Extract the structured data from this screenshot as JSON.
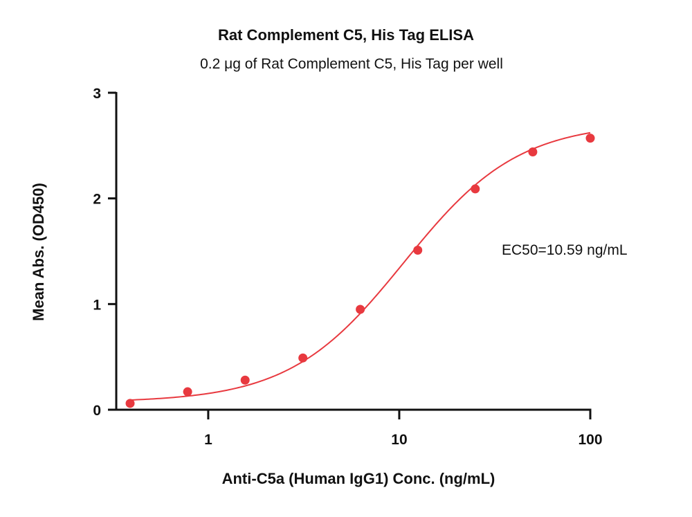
{
  "chart_data": {
    "type": "scatter",
    "title": "Rat Complement C5, His Tag ELISA",
    "subtitle": "0.2 μg of Rat Complement C5, His Tag per well",
    "xlabel": "Anti-C5a (Human IgG1) Conc. (ng/mL)",
    "ylabel": "Mean Abs. (OD450)",
    "x_scale": "log",
    "xlim": [
      0.33,
      100
    ],
    "ylim": [
      0,
      3
    ],
    "x_ticks": [
      1,
      10,
      100
    ],
    "x_tick_labels": [
      "1",
      "10",
      "100"
    ],
    "y_ticks": [
      0,
      1,
      2,
      3
    ],
    "y_tick_labels": [
      "0",
      "1",
      "2",
      "3"
    ],
    "grid": false,
    "annotation": "EC50=10.59 ng/mL",
    "colors": {
      "series": "#e8393f",
      "axis": "#111111"
    },
    "series": [
      {
        "x": [
          0.39,
          0.78,
          1.56,
          3.13,
          6.25,
          12.5,
          25,
          50,
          100
        ],
        "y": [
          0.06,
          0.17,
          0.28,
          0.49,
          0.95,
          1.51,
          2.09,
          2.44,
          2.57
        ],
        "fit": "4PL",
        "fit_params": {
          "bottom": 0.07,
          "top": 2.72,
          "ec50": 10.59,
          "hill": 1.45
        }
      }
    ]
  }
}
